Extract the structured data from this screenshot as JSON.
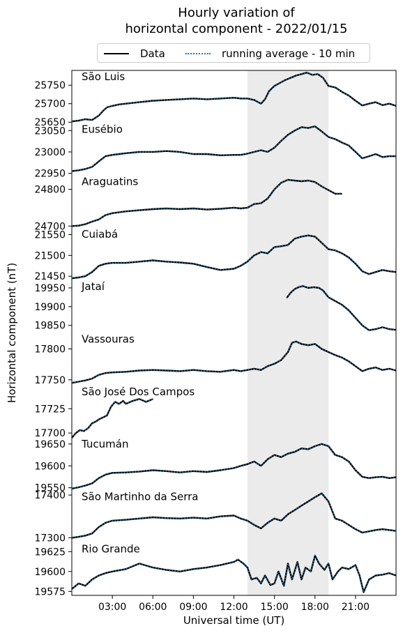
{
  "chart_data": {
    "type": "line",
    "title_lines": [
      "Hourly variation of",
      "horizontal component - 2022/01/15"
    ],
    "xlabel": "Universal time (UT)",
    "ylabel": "Horizontal component (nT)",
    "x_unit": "hour",
    "xlim": [
      0,
      24
    ],
    "x_ticks": [
      {
        "value": 3,
        "label": "03:00"
      },
      {
        "value": 6,
        "label": "06:00"
      },
      {
        "value": 9,
        "label": "09:00"
      },
      {
        "value": 12,
        "label": "12:00"
      },
      {
        "value": 15,
        "label": "15:00"
      },
      {
        "value": 18,
        "label": "18:00"
      },
      {
        "value": 21,
        "label": "21:00"
      }
    ],
    "shaded_interval": [
      13,
      19
    ],
    "legend": {
      "placement": "top",
      "entries": [
        {
          "label": "Data",
          "style": "solid",
          "color": "#000000"
        },
        {
          "label": "running average - 10 min",
          "style": "dotted",
          "color": "#1f77b4"
        }
      ]
    },
    "colors": {
      "data": "#000000",
      "running_average": "#1f77b4",
      "shading": "#ebebeb"
    },
    "grid": false,
    "panels": [
      {
        "name": "São Luis",
        "ylim": [
          25648,
          25790
        ],
        "ticks": [
          25650,
          25700,
          25750
        ],
        "x": [
          0,
          0.5,
          1,
          1.5,
          2,
          2.3,
          2.6,
          3,
          3.5,
          4,
          5,
          6,
          7,
          8,
          9,
          10,
          11,
          12,
          12.5,
          13,
          13.5,
          14,
          14.3,
          14.6,
          15,
          15.4,
          15.8,
          16.2,
          16.6,
          17,
          17.4,
          17.8,
          18.2,
          18.6,
          19,
          19.5,
          20,
          20.5,
          21,
          21.5,
          22,
          22.5,
          23,
          23.5,
          24
        ],
        "y": [
          25652,
          25654,
          25658,
          25656,
          25668,
          25680,
          25690,
          25694,
          25698,
          25700,
          25704,
          25708,
          25710,
          25712,
          25714,
          25712,
          25714,
          25716,
          25714,
          25714,
          25710,
          25700,
          25712,
          25734,
          25748,
          25756,
          25764,
          25770,
          25776,
          25780,
          25784,
          25778,
          25780,
          25770,
          25748,
          25744,
          25732,
          25722,
          25708,
          25695,
          25700,
          25704,
          25696,
          25700,
          25694
        ]
      },
      {
        "name": "Eusébio",
        "ylim": [
          22945,
          23068
        ],
        "ticks": [
          22950,
          23000,
          23050
        ],
        "x": [
          0,
          0.5,
          1,
          1.5,
          2,
          2.5,
          3,
          3.5,
          4,
          5,
          6,
          7,
          8,
          9,
          10,
          11,
          12,
          12.5,
          13,
          13.5,
          14,
          14.5,
          15,
          15.5,
          16,
          16.5,
          17,
          17.5,
          18,
          18.5,
          19,
          19.5,
          20,
          20.5,
          21,
          21.5,
          22,
          22.5,
          23,
          23.5,
          24
        ],
        "y": [
          22955,
          22957,
          22960,
          22965,
          22978,
          22990,
          22993,
          22995,
          22997,
          23000,
          23000,
          23002,
          23000,
          22995,
          22995,
          22992,
          22993,
          22993,
          22996,
          23000,
          23004,
          23000,
          23010,
          23026,
          23040,
          23050,
          23058,
          23056,
          23060,
          23048,
          23035,
          23030,
          23022,
          23015,
          23000,
          22985,
          22990,
          22995,
          22988,
          22990,
          22990
        ]
      },
      {
        "name": "Araguatins",
        "ylim": [
          24695,
          24838
        ],
        "ticks": [
          24700,
          24800
        ],
        "x": [
          0,
          0.5,
          1,
          1.5,
          2,
          2.5,
          3,
          4,
          5,
          6,
          7,
          8,
          9,
          10,
          11,
          12,
          12.5,
          13,
          13.5,
          14,
          14.5,
          15,
          15.5,
          16,
          16.5,
          17,
          17.5,
          18,
          18.5,
          19,
          19.5,
          20
        ],
        "y": [
          24700,
          24701,
          24705,
          24712,
          24718,
          24730,
          24735,
          24740,
          24743,
          24746,
          24748,
          24746,
          24748,
          24745,
          24747,
          24750,
          24748,
          24750,
          24760,
          24762,
          24775,
          24800,
          24818,
          24826,
          24824,
          24822,
          24824,
          24820,
          24808,
          24798,
          24788,
          24788
        ]
      },
      {
        "name": "Cuiabá",
        "ylim": [
          21440,
          21566
        ],
        "ticks": [
          21450,
          21500,
          21550
        ],
        "x": [
          0,
          0.5,
          1,
          1.5,
          2,
          2.5,
          3,
          4,
          5,
          6,
          7,
          8,
          9,
          10,
          11,
          12,
          12.5,
          13,
          13.5,
          14,
          14.5,
          15,
          15.5,
          16,
          16.5,
          17,
          17.5,
          18,
          18.5,
          19,
          19.5,
          20,
          20.5,
          21,
          21.5,
          22,
          22.5,
          23,
          23.5,
          24
        ],
        "y": [
          21445,
          21447,
          21450,
          21460,
          21475,
          21480,
          21482,
          21482,
          21485,
          21488,
          21485,
          21483,
          21480,
          21472,
          21465,
          21468,
          21475,
          21485,
          21500,
          21508,
          21505,
          21520,
          21522,
          21525,
          21540,
          21545,
          21548,
          21545,
          21530,
          21515,
          21512,
          21505,
          21495,
          21480,
          21462,
          21455,
          21460,
          21465,
          21462,
          21460
        ]
      },
      {
        "name": "Jataí",
        "ylim": [
          19830,
          19970
        ],
        "ticks": [
          19850,
          19900,
          19950
        ],
        "x": [
          15.9,
          16.2,
          16.5,
          16.8,
          17.1,
          17.5,
          17.9,
          18.3,
          18.6,
          19,
          19.5,
          20,
          20.5,
          21,
          21.5,
          22,
          22.5,
          23,
          23.5,
          24
        ],
        "y": [
          19923,
          19937,
          19947,
          19952,
          19955,
          19950,
          19952,
          19950,
          19943,
          19925,
          19915,
          19905,
          19890,
          19870,
          19850,
          19837,
          19840,
          19845,
          19840,
          19838
        ]
      },
      {
        "name": "Vassouras",
        "ylim": [
          19741,
          17826
        ],
        "ylim_note": "",
        "ticks": [
          17750,
          17800
        ],
        "x": [],
        "y": []
      },
      {
        "name": "São José Dos Campos",
        "ylim": [
          17695,
          17749
        ],
        "ticks": [
          17700,
          17725
        ],
        "x": [
          0,
          0.3,
          0.6,
          0.9,
          1.2,
          1.5,
          1.8,
          2,
          2.3,
          2.6,
          2.9,
          3.2,
          3.5,
          3.8,
          4,
          4.5,
          5,
          5.5,
          6
        ],
        "y": [
          17695,
          17700,
          17703,
          17702,
          17705,
          17710,
          17712,
          17714,
          17716,
          17718,
          17727,
          17732,
          17730,
          17733,
          17730,
          17733,
          17735,
          17732,
          17735
        ]
      },
      {
        "name": "Tucumán",
        "ylim": [
          19544,
          19664
        ],
        "ticks": [
          19550,
          19600,
          19650
        ],
        "x": [
          0,
          0.5,
          1,
          1.5,
          2,
          2.5,
          3,
          4,
          5,
          6,
          7,
          8,
          9,
          10,
          11,
          12,
          12.5,
          13,
          13.5,
          14,
          14.5,
          15,
          15.5,
          16,
          16.5,
          17,
          17.5,
          18,
          18.5,
          19,
          19.5,
          20,
          20.5,
          21,
          21.5,
          22,
          22.5,
          23,
          23.5,
          24
        ],
        "y": [
          19548,
          19551,
          19555,
          19560,
          19572,
          19580,
          19584,
          19585,
          19587,
          19590,
          19588,
          19585,
          19588,
          19586,
          19590,
          19595,
          19600,
          19604,
          19610,
          19600,
          19615,
          19625,
          19620,
          19628,
          19632,
          19640,
          19638,
          19645,
          19650,
          19645,
          19625,
          19620,
          19610,
          19590,
          19575,
          19572,
          19574,
          19575,
          19572,
          19574
        ]
      },
      {
        "name": "São Martinho da Serra",
        "ylim": [
          17288,
          17411
        ],
        "ticks": [
          17300,
          17400
        ],
        "x": [
          0,
          0.5,
          1,
          1.5,
          2,
          2.5,
          3,
          4,
          5,
          6,
          7,
          8,
          9,
          10,
          11,
          12,
          12.5,
          13,
          13.5,
          14,
          14.5,
          15,
          15.5,
          16,
          16.5,
          17,
          17.5,
          18,
          18.5,
          19,
          19.5,
          20,
          20.5,
          21,
          21.5,
          22,
          22.5,
          23,
          23.5,
          24
        ],
        "y": [
          17300,
          17302,
          17305,
          17310,
          17325,
          17335,
          17340,
          17342,
          17345,
          17348,
          17346,
          17345,
          17347,
          17345,
          17350,
          17352,
          17345,
          17340,
          17330,
          17322,
          17335,
          17345,
          17340,
          17355,
          17365,
          17375,
          17385,
          17395,
          17404,
          17385,
          17345,
          17340,
          17330,
          17320,
          17312,
          17315,
          17318,
          17320,
          17318,
          17316
        ]
      },
      {
        "name": "Rio Grande",
        "ylim": [
          19570,
          19636
        ],
        "ticks": [
          19575,
          19600,
          19625
        ],
        "x": [
          0,
          0.5,
          1,
          1.5,
          2,
          2.5,
          3,
          4,
          5,
          6,
          7,
          8,
          9,
          10,
          11,
          12,
          12.3,
          12.7,
          13,
          13.3,
          13.7,
          14,
          14.3,
          14.7,
          15,
          15.3,
          15.7,
          16,
          16.3,
          16.7,
          17,
          17.3,
          17.7,
          18,
          18.3,
          18.7,
          19,
          19.3,
          19.7,
          20,
          20.5,
          21,
          21.3,
          21.6,
          22,
          22.5,
          23,
          23.5,
          24
        ],
        "y": [
          19578,
          19585,
          19582,
          19590,
          19595,
          19598,
          19600,
          19603,
          19610,
          19605,
          19602,
          19600,
          19603,
          19605,
          19608,
          19612,
          19615,
          19610,
          19605,
          19590,
          19592,
          19585,
          19595,
          19583,
          19585,
          19600,
          19582,
          19610,
          19590,
          19612,
          19590,
          19605,
          19600,
          19620,
          19610,
          19602,
          19610,
          19590,
          19600,
          19605,
          19603,
          19608,
          19595,
          19574,
          19590,
          19595,
          19596,
          19598,
          19595
        ]
      }
    ]
  }
}
